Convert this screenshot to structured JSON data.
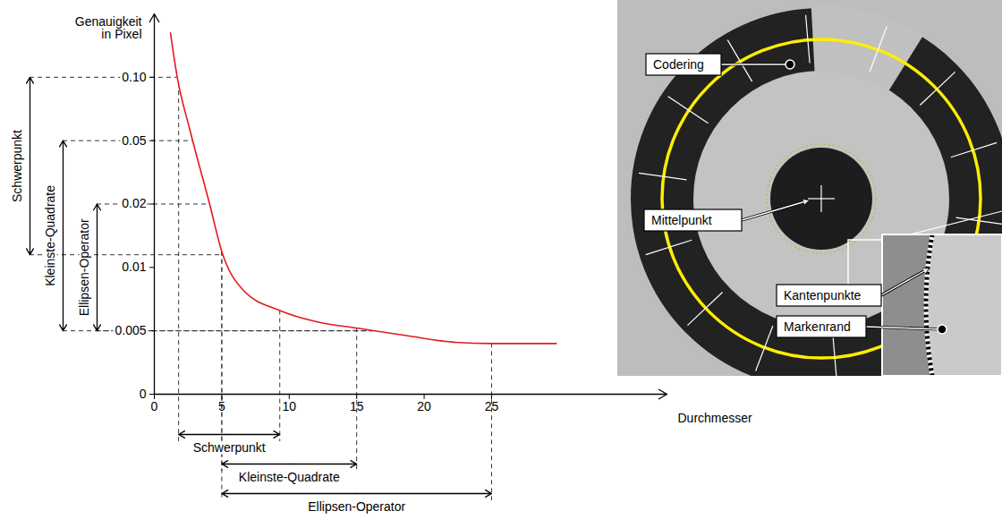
{
  "chart_data": {
    "type": "line",
    "y_label": "Genauigkeit in Pixel",
    "x_label": "Durchmesser",
    "x": [
      1.2,
      1.7,
      2.6,
      4.1,
      5,
      6.6,
      9.3,
      12.1,
      15.1,
      18.8,
      22.2,
      25,
      29.8
    ],
    "values": [
      0.17,
      0.1,
      0.06,
      0.02,
      0.0125,
      0.0082,
      0.0066,
      0.0057,
      0.0052,
      0.0046,
      0.0041,
      0.004,
      0.004
    ],
    "color": "#e41a1c",
    "xlim": [
      0,
      38
    ],
    "xticks": [
      0,
      5,
      10,
      15,
      20,
      25
    ],
    "ylim": [
      0,
      0.2
    ],
    "yticks": [
      0,
      0.005,
      0.01,
      0.02,
      0.05,
      {
        "value": 0.1,
        "label": "0.10"
      }
    ],
    "annotations": [
      {
        "text": "Schwerpunkt",
        "x_range": [
          1.8,
          9.3
        ],
        "y_range": [
          0.012,
          0.1
        ]
      },
      {
        "text": "Kleinste-Quadrate",
        "x_range": [
          5,
          15
        ],
        "y_range": [
          0.005,
          0.05
        ]
      },
      {
        "text": "Ellipsen-Operator",
        "x_range": [
          5,
          25
        ],
        "y_range": [
          0.005,
          0.02
        ]
      }
    ]
  },
  "image": {
    "labels": [
      "Codering",
      "Mittelpunkt",
      "Kantenpunkte",
      "Markenrand"
    ]
  }
}
